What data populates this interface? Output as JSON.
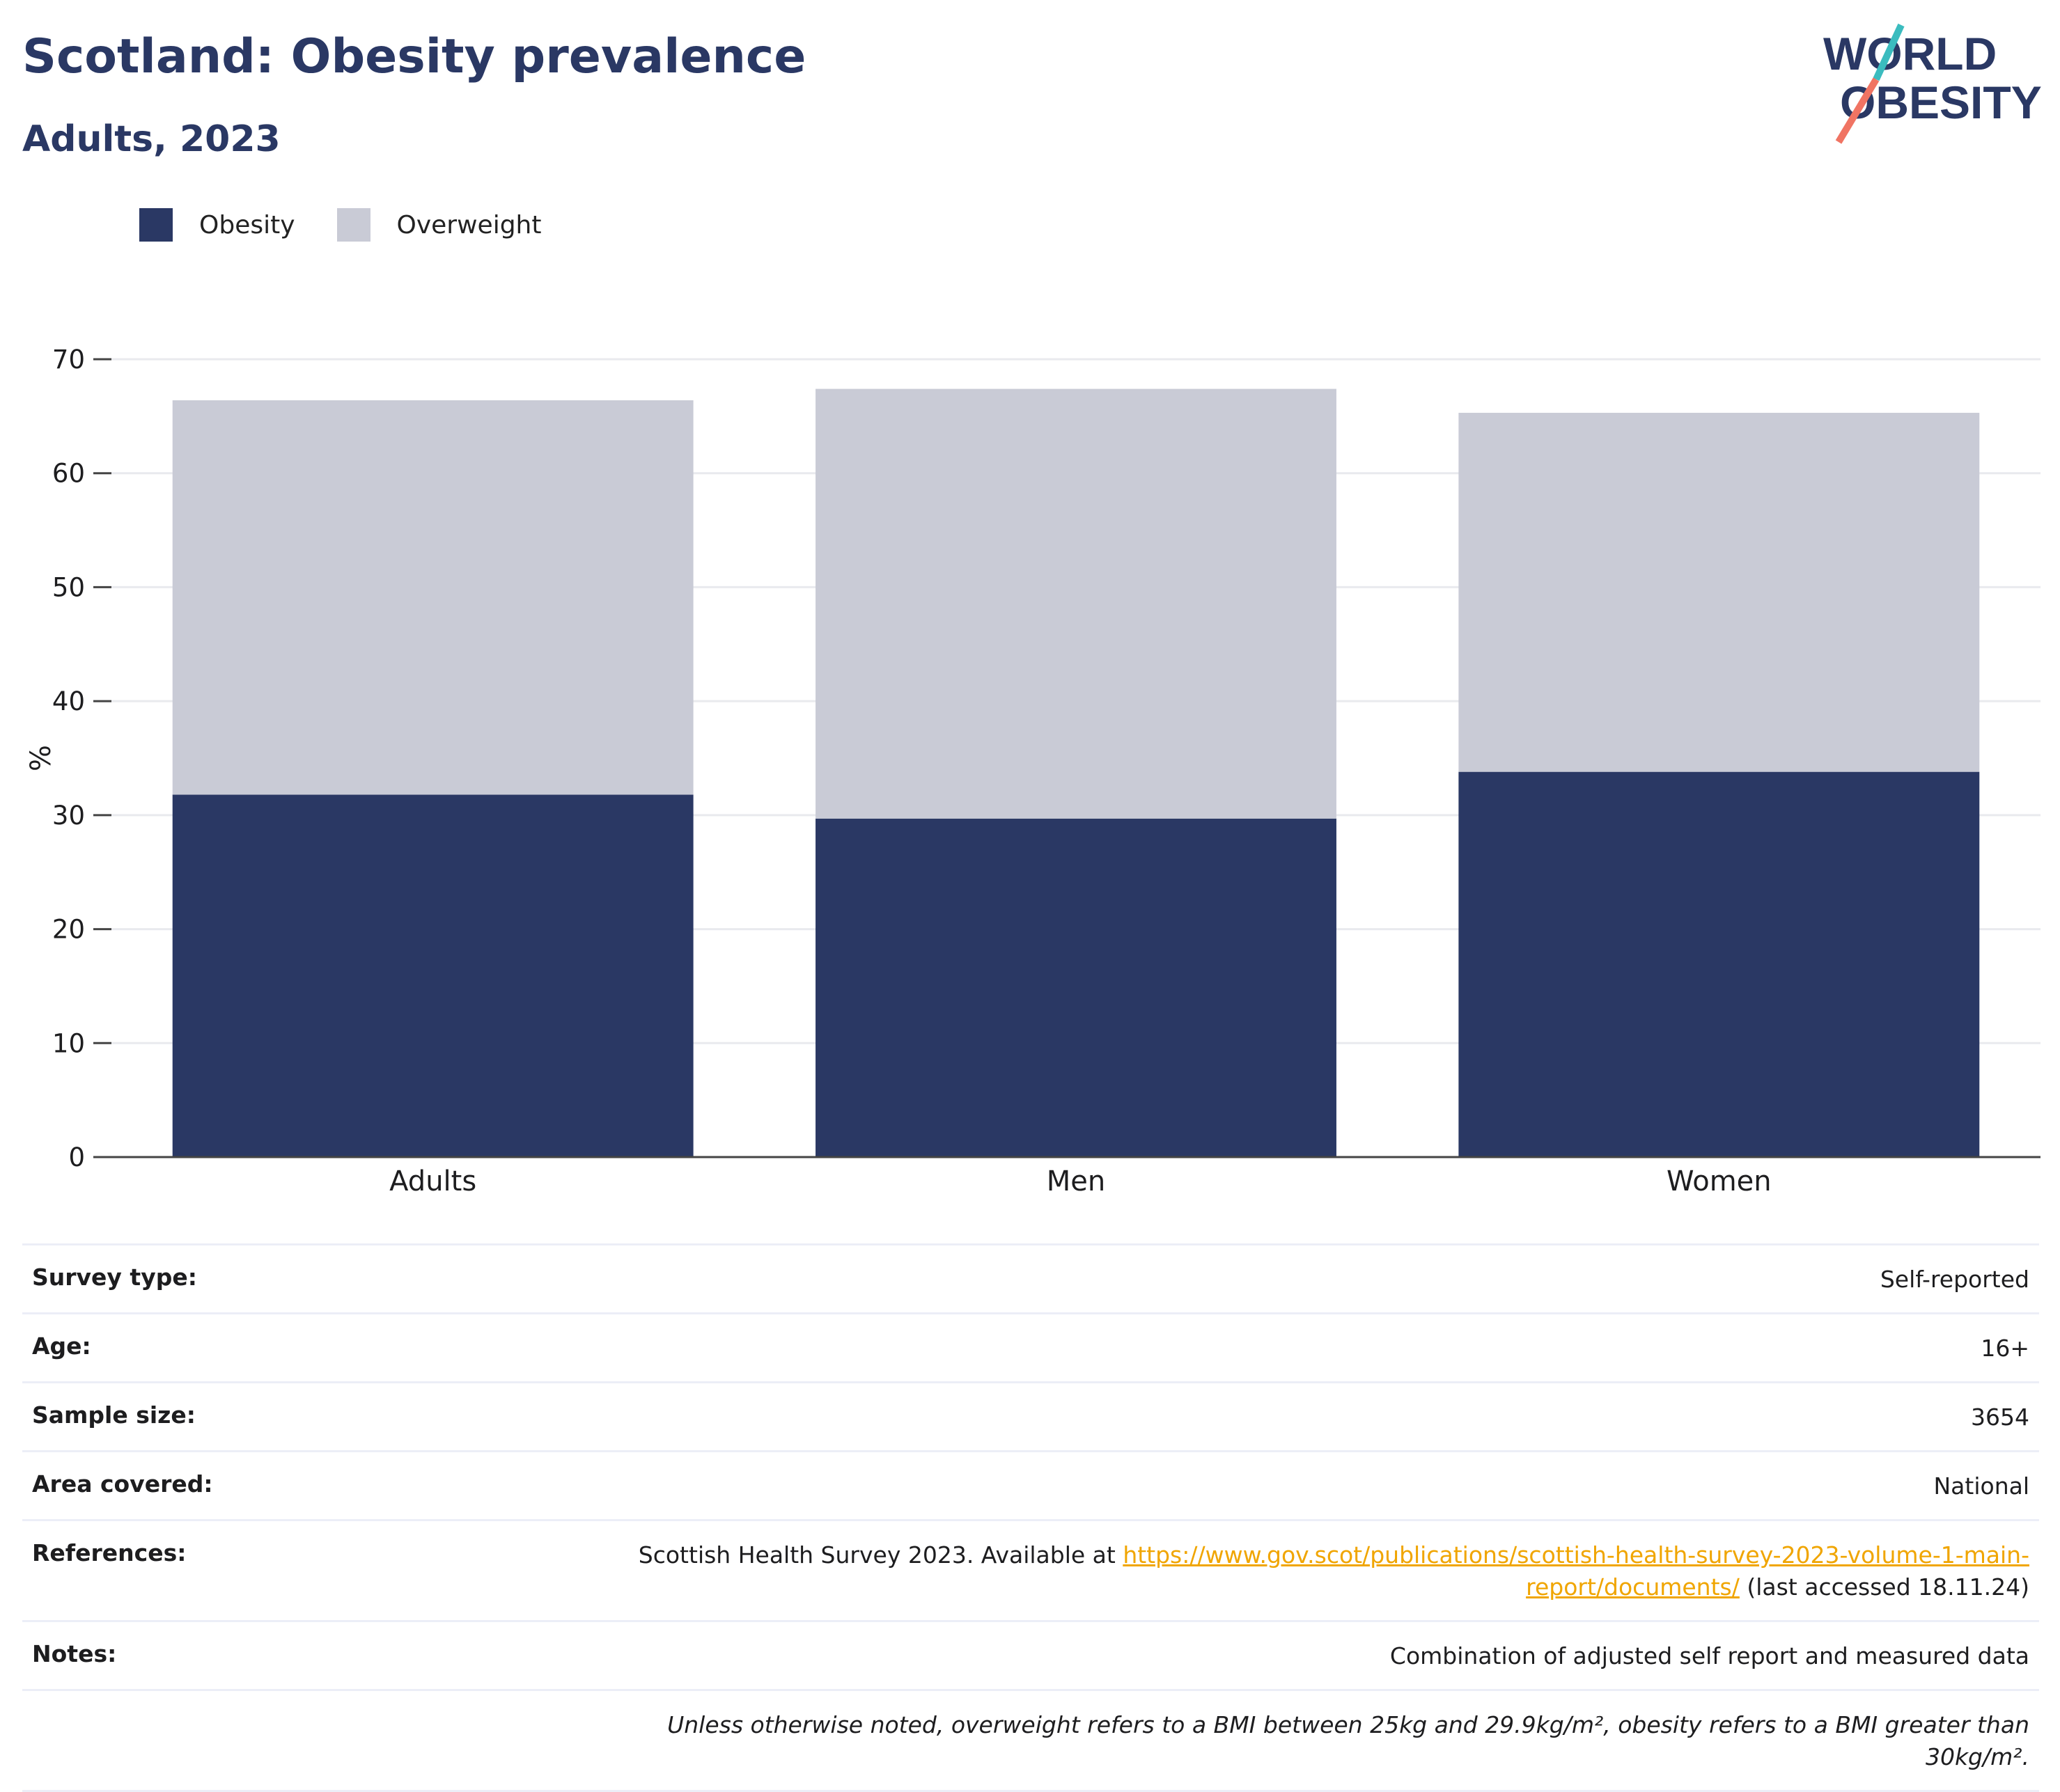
{
  "header": {
    "title": "Scotland: Obesity prevalence",
    "subtitle": "Adults, 2023"
  },
  "logo": {
    "line1": "WORLD",
    "line2": "OBESITY",
    "colors": {
      "text": "#2a3864",
      "slash_teal": "#3bbcbf",
      "slash_coral": "#f07463"
    }
  },
  "legend": [
    {
      "label": "Obesity",
      "color": "#2a3864"
    },
    {
      "label": "Overweight",
      "color": "#c9cbd6"
    }
  ],
  "chart_data": {
    "type": "bar",
    "stacked": true,
    "categories": [
      "Adults",
      "Men",
      "Women"
    ],
    "series": [
      {
        "name": "Obesity",
        "color": "#2a3864",
        "values": [
          31.8,
          29.7,
          33.8
        ]
      },
      {
        "name": "Overweight",
        "color": "#c9cbd6",
        "values": [
          34.6,
          37.7,
          31.5
        ]
      }
    ],
    "ylabel": "%",
    "xlabel": "",
    "ylim": [
      0,
      70
    ],
    "yticks": [
      0,
      10,
      20,
      30,
      40,
      50,
      60,
      70
    ],
    "grid": true,
    "legend_position": "top-left"
  },
  "info": {
    "survey_type": {
      "label": "Survey type:",
      "value": "Self-reported"
    },
    "age": {
      "label": "Age:",
      "value": "16+"
    },
    "sample_size": {
      "label": "Sample size:",
      "value": "3654"
    },
    "area_covered": {
      "label": "Area covered:",
      "value": "National"
    },
    "references": {
      "label": "References:",
      "prefix": "Scottish Health Survey 2023. Available at ",
      "link": "https://www.gov.scot/publications/scottish-health-survey-2023-volume-1-main-report/documents/",
      "suffix": " (last accessed 18.11.24)"
    },
    "notes": {
      "label": "Notes:",
      "value": "Combination of adjusted self report and measured data"
    },
    "definition": "Unless otherwise noted, overweight refers to a BMI between 25kg and 29.9kg/m², obesity refers to a BMI greater than 30kg/m²."
  }
}
